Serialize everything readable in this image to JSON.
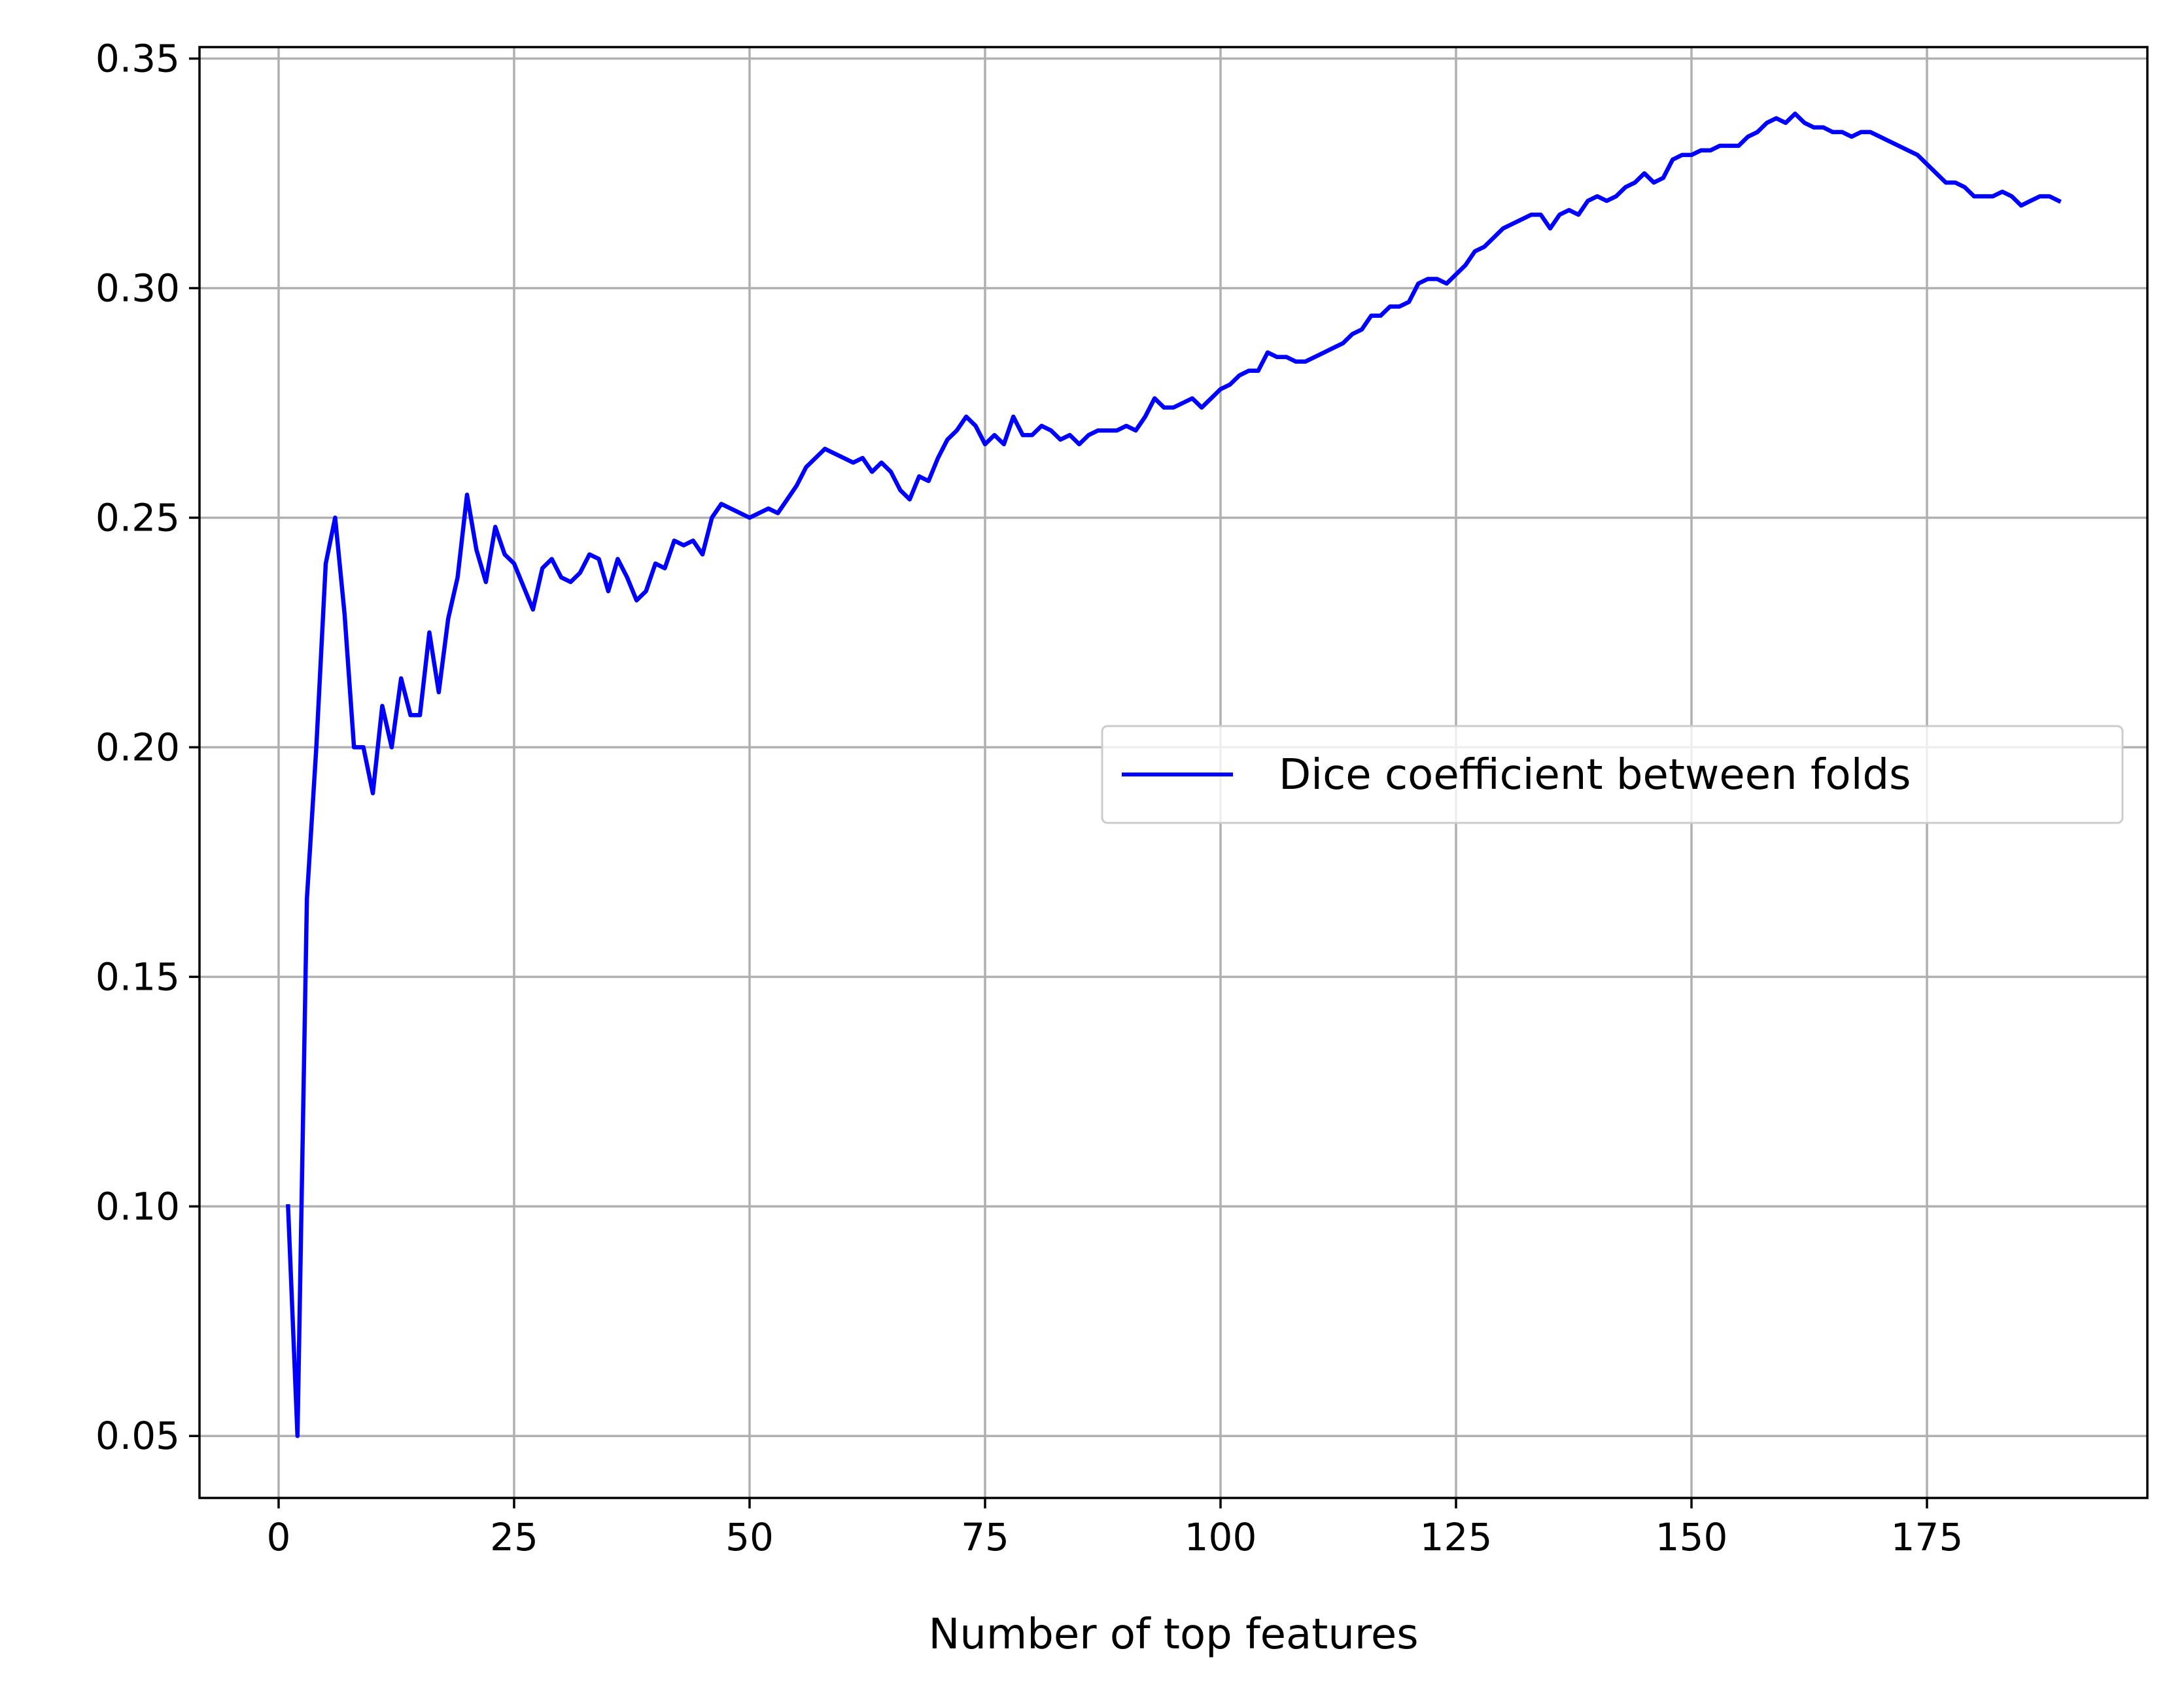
{
  "chart_data": {
    "type": "line",
    "title": "",
    "xlabel": "Number of top features",
    "ylabel": "",
    "xlim": [
      -8.4,
      198.4
    ],
    "ylim": [
      0.0365,
      0.3525
    ],
    "xticks": [
      0,
      25,
      50,
      75,
      100,
      125,
      150,
      175
    ],
    "xtick_labels": [
      "0",
      "25",
      "50",
      "75",
      "100",
      "125",
      "150",
      "175"
    ],
    "yticks": [
      0.05,
      0.1,
      0.15,
      0.2,
      0.25,
      0.3,
      0.35
    ],
    "ytick_labels": [
      "0.05",
      "0.10",
      "0.15",
      "0.20",
      "0.25",
      "0.30",
      "0.35"
    ],
    "grid": true,
    "legend_position": "center-right",
    "series": [
      {
        "name": "Dice coefficient between folds",
        "color": "#0000ff",
        "points": [
          [
            1,
            0.1
          ],
          [
            2,
            0.05
          ],
          [
            3,
            0.167
          ],
          [
            4,
            0.2
          ],
          [
            5,
            0.24
          ],
          [
            6,
            0.25
          ],
          [
            7,
            0.229
          ],
          [
            8,
            0.2
          ],
          [
            9,
            0.2
          ],
          [
            10,
            0.19
          ],
          [
            11,
            0.209
          ],
          [
            12,
            0.2
          ],
          [
            13,
            0.215
          ],
          [
            14,
            0.207
          ],
          [
            15,
            0.207
          ],
          [
            16,
            0.225
          ],
          [
            17,
            0.212
          ],
          [
            18,
            0.228
          ],
          [
            19,
            0.237
          ],
          [
            20,
            0.255
          ],
          [
            21,
            0.243
          ],
          [
            22,
            0.236
          ],
          [
            23,
            0.248
          ],
          [
            24,
            0.242
          ],
          [
            25,
            0.24
          ],
          [
            26,
            0.235
          ],
          [
            27,
            0.23
          ],
          [
            28,
            0.239
          ],
          [
            29,
            0.241
          ],
          [
            30,
            0.237
          ],
          [
            31,
            0.236
          ],
          [
            32,
            0.238
          ],
          [
            33,
            0.242
          ],
          [
            34,
            0.241
          ],
          [
            35,
            0.234
          ],
          [
            36,
            0.241
          ],
          [
            37,
            0.237
          ],
          [
            38,
            0.232
          ],
          [
            39,
            0.234
          ],
          [
            40,
            0.24
          ],
          [
            41,
            0.239
          ],
          [
            42,
            0.245
          ],
          [
            43,
            0.244
          ],
          [
            44,
            0.245
          ],
          [
            45,
            0.242
          ],
          [
            46,
            0.25
          ],
          [
            47,
            0.253
          ],
          [
            48,
            0.252
          ],
          [
            49,
            0.251
          ],
          [
            50,
            0.25
          ],
          [
            51,
            0.251
          ],
          [
            52,
            0.252
          ],
          [
            53,
            0.251
          ],
          [
            54,
            0.254
          ],
          [
            55,
            0.257
          ],
          [
            56,
            0.261
          ],
          [
            57,
            0.263
          ],
          [
            58,
            0.265
          ],
          [
            59,
            0.264
          ],
          [
            60,
            0.263
          ],
          [
            61,
            0.262
          ],
          [
            62,
            0.263
          ],
          [
            63,
            0.26
          ],
          [
            64,
            0.262
          ],
          [
            65,
            0.26
          ],
          [
            66,
            0.256
          ],
          [
            67,
            0.254
          ],
          [
            68,
            0.259
          ],
          [
            69,
            0.258
          ],
          [
            70,
            0.263
          ],
          [
            71,
            0.267
          ],
          [
            72,
            0.269
          ],
          [
            73,
            0.272
          ],
          [
            74,
            0.27
          ],
          [
            75,
            0.266
          ],
          [
            76,
            0.268
          ],
          [
            77,
            0.266
          ],
          [
            78,
            0.272
          ],
          [
            79,
            0.268
          ],
          [
            80,
            0.268
          ],
          [
            81,
            0.27
          ],
          [
            82,
            0.269
          ],
          [
            83,
            0.267
          ],
          [
            84,
            0.268
          ],
          [
            85,
            0.266
          ],
          [
            86,
            0.268
          ],
          [
            87,
            0.269
          ],
          [
            88,
            0.269
          ],
          [
            89,
            0.269
          ],
          [
            90,
            0.27
          ],
          [
            91,
            0.269
          ],
          [
            92,
            0.272
          ],
          [
            93,
            0.276
          ],
          [
            94,
            0.274
          ],
          [
            95,
            0.274
          ],
          [
            96,
            0.275
          ],
          [
            97,
            0.276
          ],
          [
            98,
            0.274
          ],
          [
            99,
            0.276
          ],
          [
            100,
            0.278
          ],
          [
            101,
            0.279
          ],
          [
            102,
            0.281
          ],
          [
            103,
            0.282
          ],
          [
            104,
            0.282
          ],
          [
            105,
            0.286
          ],
          [
            106,
            0.285
          ],
          [
            107,
            0.285
          ],
          [
            108,
            0.284
          ],
          [
            109,
            0.284
          ],
          [
            110,
            0.285
          ],
          [
            111,
            0.286
          ],
          [
            112,
            0.287
          ],
          [
            113,
            0.288
          ],
          [
            114,
            0.29
          ],
          [
            115,
            0.291
          ],
          [
            116,
            0.294
          ],
          [
            117,
            0.294
          ],
          [
            118,
            0.296
          ],
          [
            119,
            0.296
          ],
          [
            120,
            0.297
          ],
          [
            121,
            0.301
          ],
          [
            122,
            0.302
          ],
          [
            123,
            0.302
          ],
          [
            124,
            0.301
          ],
          [
            125,
            0.303
          ],
          [
            126,
            0.305
          ],
          [
            127,
            0.308
          ],
          [
            128,
            0.309
          ],
          [
            129,
            0.311
          ],
          [
            130,
            0.313
          ],
          [
            131,
            0.314
          ],
          [
            132,
            0.315
          ],
          [
            133,
            0.316
          ],
          [
            134,
            0.316
          ],
          [
            135,
            0.313
          ],
          [
            136,
            0.316
          ],
          [
            137,
            0.317
          ],
          [
            138,
            0.316
          ],
          [
            139,
            0.319
          ],
          [
            140,
            0.32
          ],
          [
            141,
            0.319
          ],
          [
            142,
            0.32
          ],
          [
            143,
            0.322
          ],
          [
            144,
            0.323
          ],
          [
            145,
            0.325
          ],
          [
            146,
            0.323
          ],
          [
            147,
            0.324
          ],
          [
            148,
            0.328
          ],
          [
            149,
            0.329
          ],
          [
            150,
            0.329
          ],
          [
            151,
            0.33
          ],
          [
            152,
            0.33
          ],
          [
            153,
            0.331
          ],
          [
            154,
            0.331
          ],
          [
            155,
            0.331
          ],
          [
            156,
            0.333
          ],
          [
            157,
            0.334
          ],
          [
            158,
            0.336
          ],
          [
            159,
            0.337
          ],
          [
            160,
            0.336
          ],
          [
            161,
            0.338
          ],
          [
            162,
            0.336
          ],
          [
            163,
            0.335
          ],
          [
            164,
            0.335
          ],
          [
            165,
            0.334
          ],
          [
            166,
            0.334
          ],
          [
            167,
            0.333
          ],
          [
            168,
            0.334
          ],
          [
            169,
            0.334
          ],
          [
            170,
            0.333
          ],
          [
            171,
            0.332
          ],
          [
            172,
            0.331
          ],
          [
            173,
            0.33
          ],
          [
            174,
            0.329
          ],
          [
            175,
            0.327
          ],
          [
            176,
            0.325
          ],
          [
            177,
            0.323
          ],
          [
            178,
            0.323
          ],
          [
            179,
            0.322
          ],
          [
            180,
            0.32
          ],
          [
            181,
            0.32
          ],
          [
            182,
            0.32
          ],
          [
            183,
            0.321
          ],
          [
            184,
            0.32
          ],
          [
            185,
            0.318
          ],
          [
            186,
            0.319
          ],
          [
            187,
            0.32
          ],
          [
            188,
            0.32
          ],
          [
            189,
            0.319
          ]
        ]
      }
    ]
  }
}
